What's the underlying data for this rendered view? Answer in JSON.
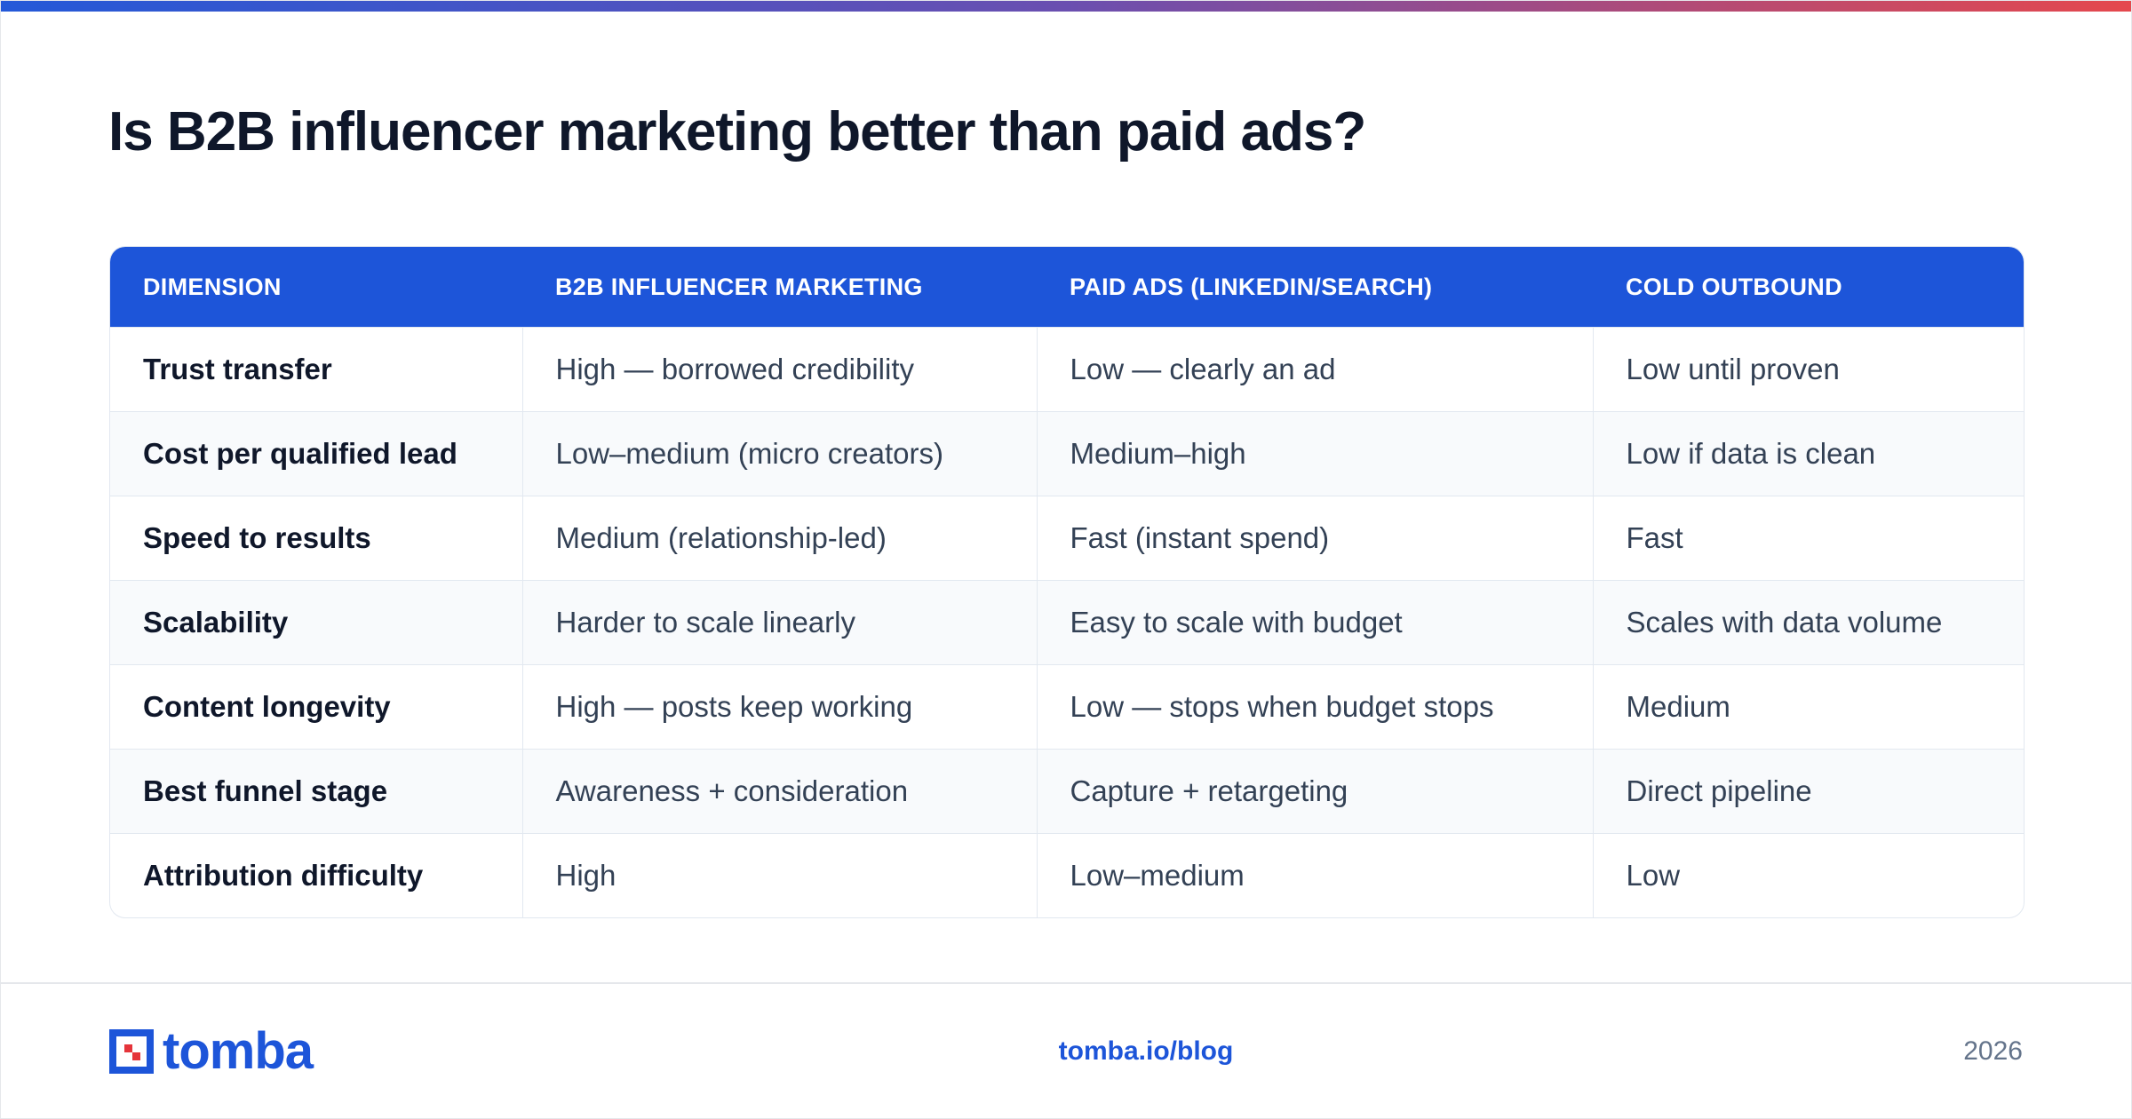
{
  "header": {
    "title": "Is B2B influencer marketing better than paid ads?"
  },
  "table": {
    "columns": [
      "DIMENSION",
      "B2B INFLUENCER MARKETING",
      "PAID ADS (LINKEDIN/SEARCH)",
      "COLD OUTBOUND"
    ],
    "rows": [
      [
        "Trust transfer",
        "High — borrowed credibility",
        "Low — clearly an ad",
        "Low until proven"
      ],
      [
        "Cost per qualified lead",
        "Low–medium (micro creators)",
        "Medium–high",
        "Low if data is clean"
      ],
      [
        "Speed to results",
        "Medium (relationship-led)",
        "Fast (instant spend)",
        "Fast"
      ],
      [
        "Scalability",
        "Harder to scale linearly",
        "Easy to scale with budget",
        "Scales with data volume"
      ],
      [
        "Content longevity",
        "High — posts keep working",
        "Low — stops when budget stops",
        "Medium"
      ],
      [
        "Best funnel stage",
        "Awareness + consideration",
        "Capture + retargeting",
        "Direct pipeline"
      ],
      [
        "Attribution difficulty",
        "High",
        "Low–medium",
        "Low"
      ]
    ]
  },
  "footer": {
    "brand": "tomba",
    "link": "tomba.io/blog",
    "year": "2026"
  }
}
